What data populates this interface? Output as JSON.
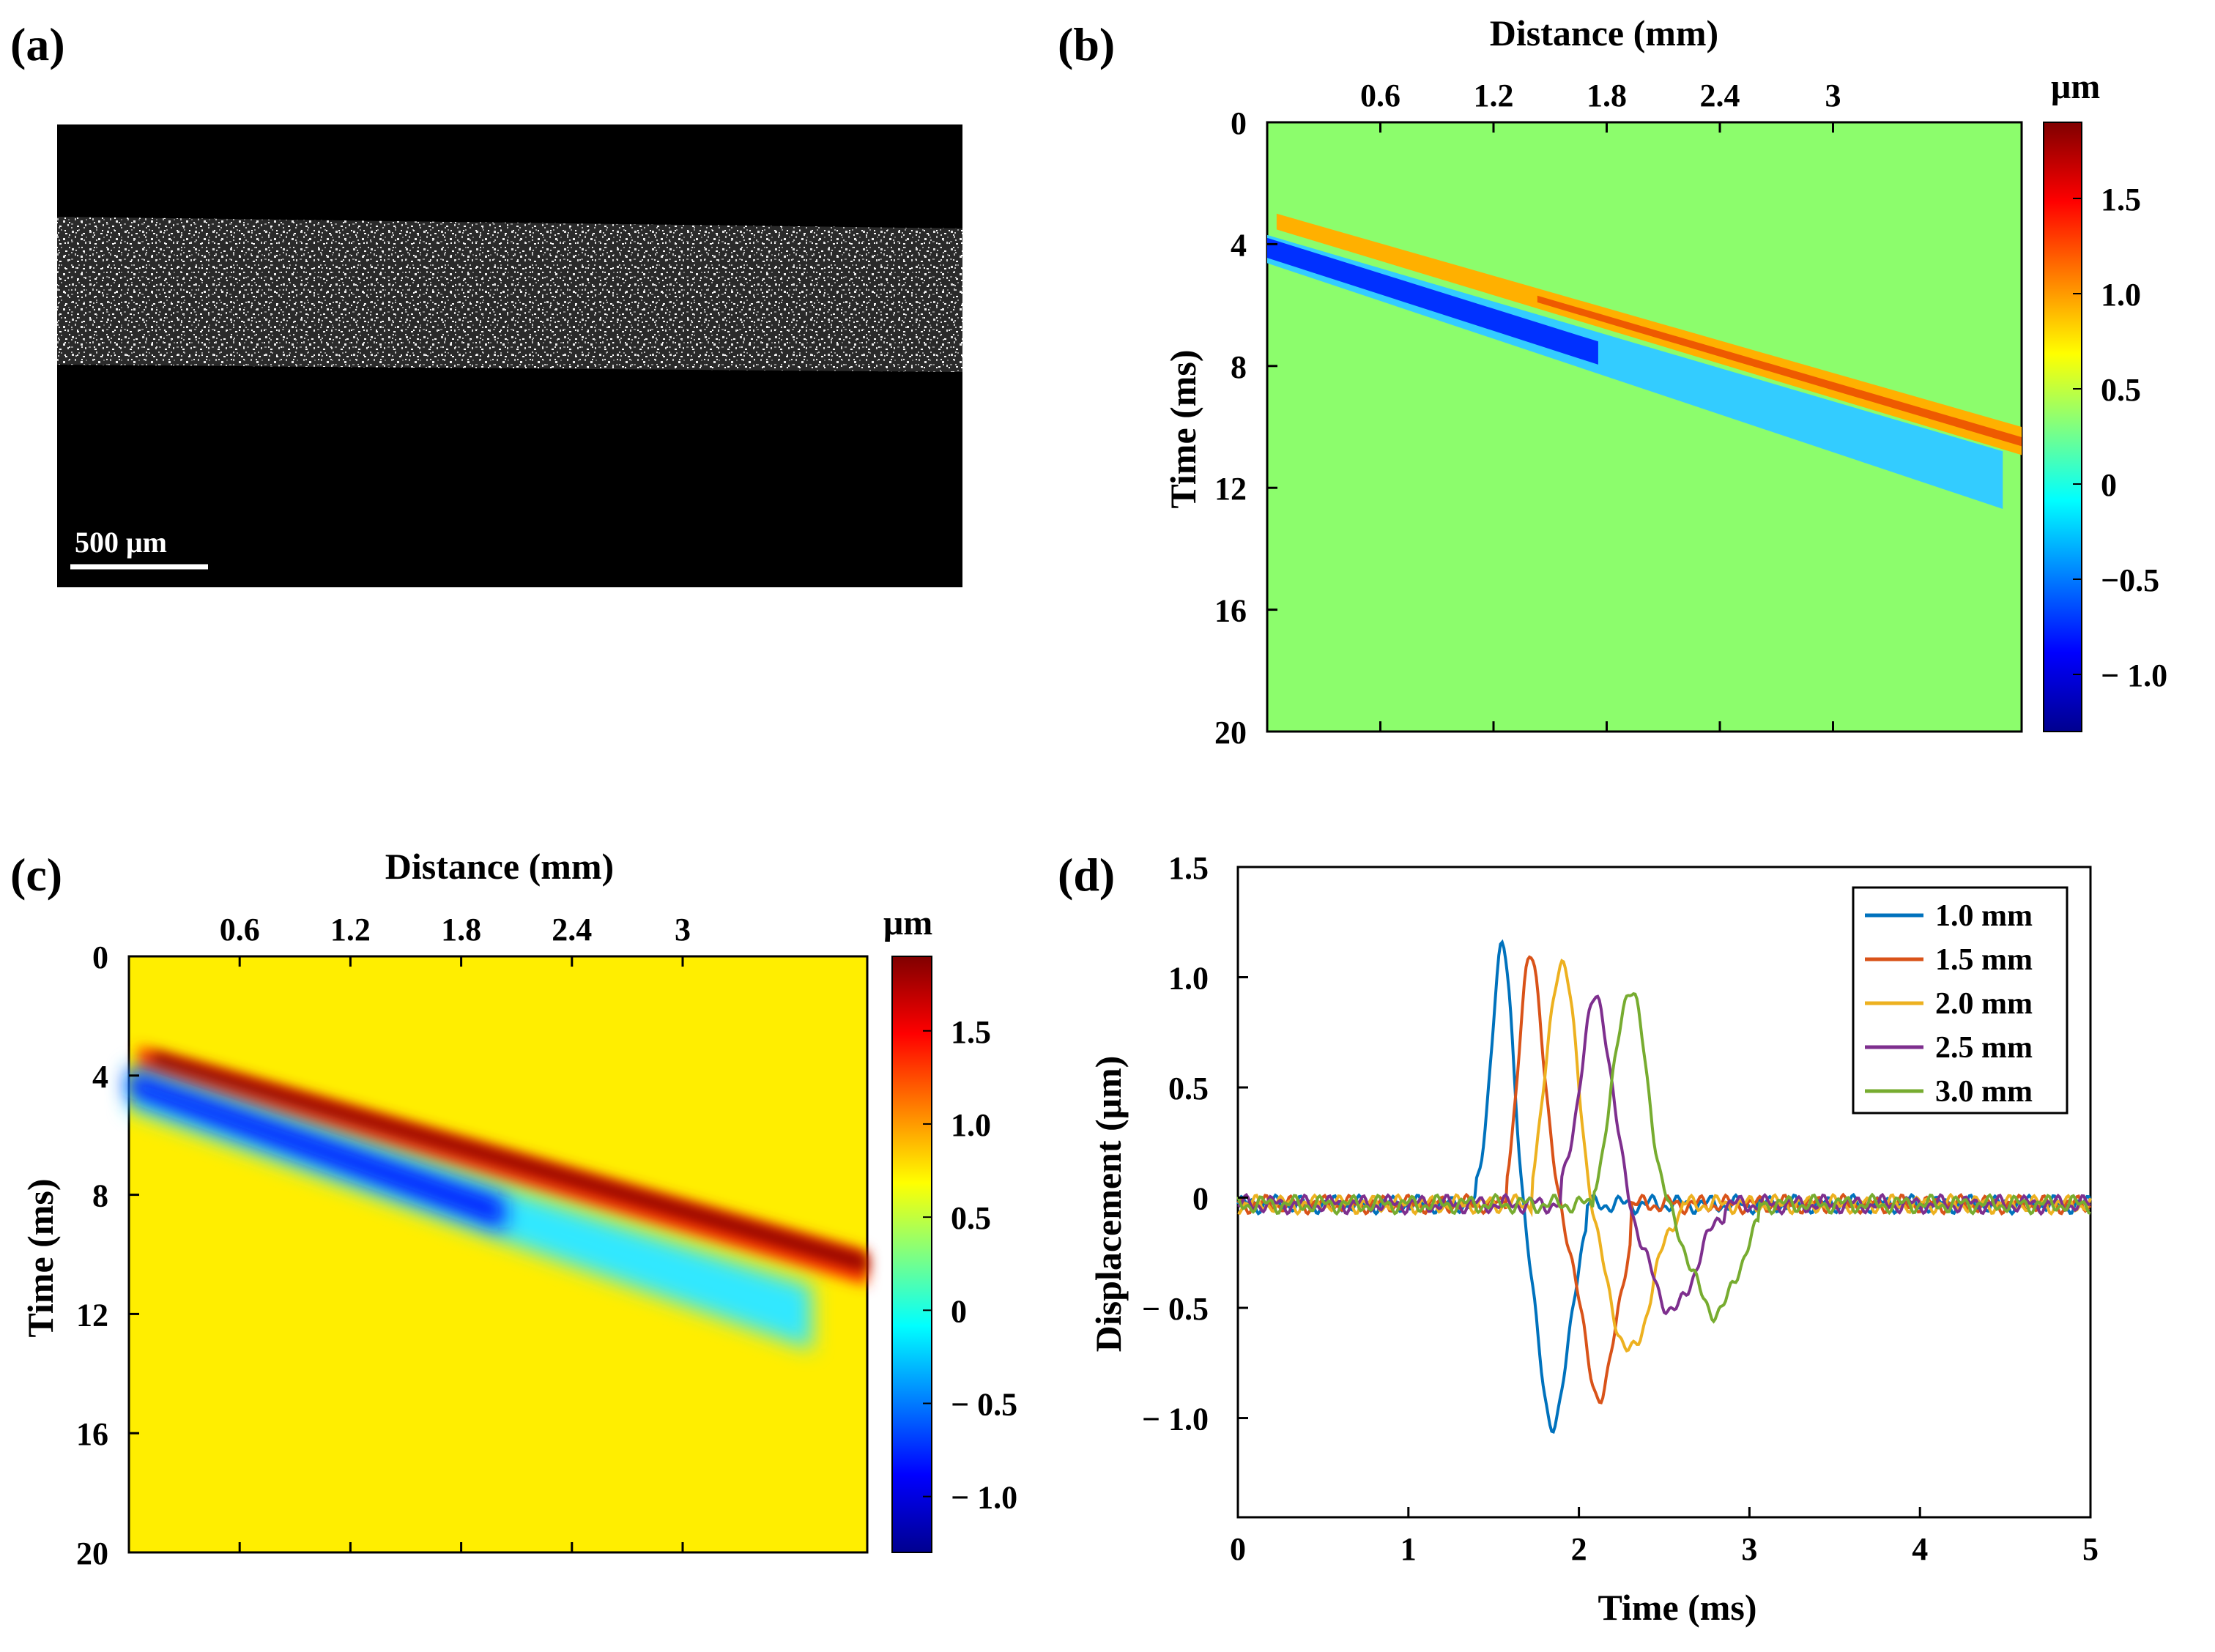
{
  "panels": {
    "a": "(a)",
    "b": "(b)",
    "c": "(c)",
    "d": "(d)"
  },
  "panel_a": {
    "scale_bar_label": "500 μm"
  },
  "colors": {
    "jet_low": "#00008f",
    "jet_zero_b": "#8cfd6c",
    "jet_zero_c": "#ffff00",
    "jet_high": "#800000"
  },
  "chart_data": [
    {
      "type": "heatmap",
      "panel": "(b)",
      "xlabel": "Distance (mm)",
      "ylabel": "Time (ms)",
      "x_ticks": [
        "0.6",
        "1.2",
        "1.8",
        "2.4",
        "3"
      ],
      "y_ticks": [
        "0",
        "4",
        "8",
        "12",
        "16",
        "20"
      ],
      "xlim": [
        0,
        4.0
      ],
      "ylim": [
        0,
        20
      ],
      "colorbar": {
        "unit": "μm",
        "ticks": [
          "1.5",
          "1.0",
          "0.5",
          "0",
          "−0.5",
          "− 1.0"
        ],
        "range": [
          -1.3,
          1.9
        ]
      },
      "wave_bands": [
        {
          "polarity": "positive",
          "start": [
            0.05,
            3.0
          ],
          "end": [
            4.0,
            10.0
          ]
        },
        {
          "polarity": "negative",
          "start": [
            0.0,
            3.7
          ],
          "end": [
            3.9,
            12.0
          ]
        }
      ]
    },
    {
      "type": "heatmap",
      "panel": "(c)",
      "xlabel": "Distance (mm)",
      "ylabel": "Time (ms)",
      "x_ticks": [
        "0.6",
        "1.2",
        "1.8",
        "2.4",
        "3"
      ],
      "y_ticks": [
        "0",
        "4",
        "8",
        "12",
        "16",
        "20"
      ],
      "xlim": [
        0,
        4.0
      ],
      "ylim": [
        0,
        20
      ],
      "colorbar": {
        "unit": "μm",
        "ticks": [
          "1.5",
          "1.0",
          "0.5",
          "0",
          "− 0.5",
          "− 1.0"
        ],
        "range": [
          -1.3,
          1.9
        ]
      },
      "wave_bands": [
        {
          "polarity": "positive",
          "start": [
            0.05,
            3.0
          ],
          "end": [
            4.0,
            9.9
          ]
        },
        {
          "polarity": "negative",
          "start": [
            0.0,
            3.7
          ],
          "end": [
            3.7,
            11.8
          ]
        }
      ]
    },
    {
      "type": "line",
      "panel": "(d)",
      "xlabel": "Time (ms)",
      "ylabel": "Displacement (μm)",
      "xlim": [
        0,
        5
      ],
      "ylim": [
        -1.45,
        1.5
      ],
      "x_ticks": [
        "0",
        "1",
        "2",
        "3",
        "4",
        "5"
      ],
      "y_ticks": [
        "1.5",
        "1.0",
        "0.5",
        "0",
        "− 0.5",
        "− 1.0"
      ],
      "legend_position": "top-right",
      "series": [
        {
          "name": "1.0 mm",
          "color": "#0072bd",
          "onset": 1.4,
          "peak_t": 1.55,
          "peak": 1.17,
          "trough_t": 1.85,
          "trough": -1.0,
          "end": 2.05
        },
        {
          "name": "1.5 mm",
          "color": "#d95319",
          "onset": 1.58,
          "peak_t": 1.72,
          "peak": 1.13,
          "trough_t": 2.12,
          "trough": -0.87,
          "end": 2.3
        },
        {
          "name": "2.0 mm",
          "color": "#edb120",
          "onset": 1.73,
          "peak_t": 1.9,
          "peak": 1.11,
          "trough_t": 2.3,
          "trough": -0.67,
          "end": 2.6
        },
        {
          "name": "2.5 mm",
          "color": "#7e2f8e",
          "onset": 1.9,
          "peak_t": 2.1,
          "peak": 0.93,
          "trough_t": 2.55,
          "trough": -0.48,
          "end": 2.85
        },
        {
          "name": "3.0 mm",
          "color": "#77ac30",
          "onset": 2.08,
          "peak_t": 2.3,
          "peak": 0.98,
          "trough_t": 2.8,
          "trough": -0.49,
          "end": 3.05
        }
      ]
    }
  ]
}
